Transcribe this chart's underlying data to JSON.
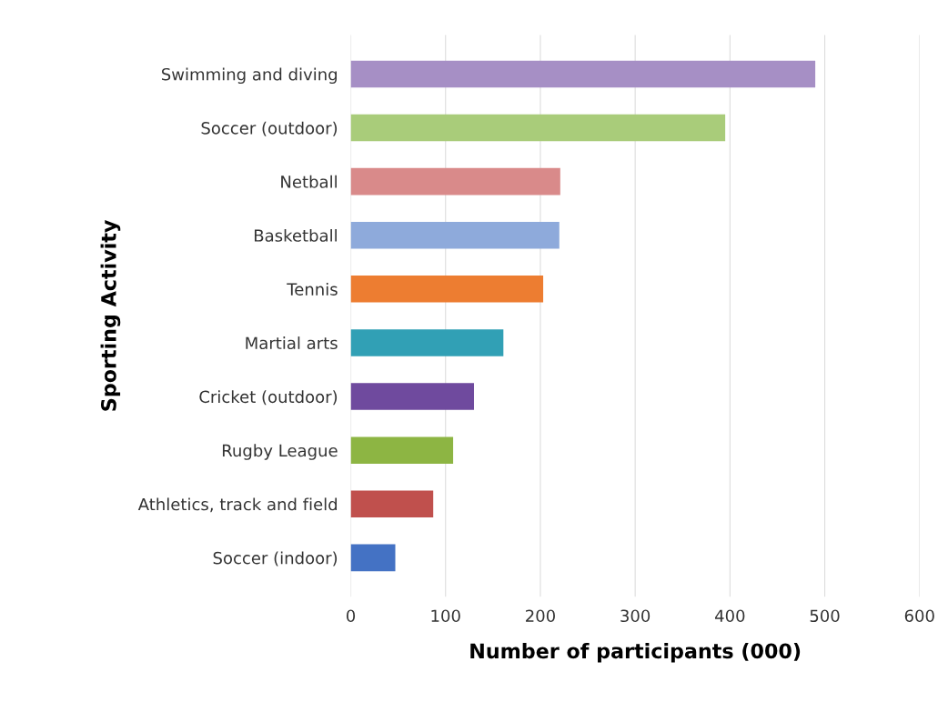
{
  "chart_data": {
    "type": "bar",
    "orientation": "horizontal",
    "xlabel": "Number of participants (000)",
    "ylabel": "Sporting Activity",
    "categories": [
      "Swimming and diving",
      "Soccer (outdoor)",
      "Netball",
      "Basketball",
      "Tennis",
      "Martial arts",
      "Cricket (outdoor)",
      "Rugby League",
      "Athletics, track and field",
      "Soccer (indoor)"
    ],
    "values": [
      490,
      395,
      221,
      220,
      203,
      161,
      130,
      108,
      87,
      47
    ],
    "colors": [
      "#a68fc5",
      "#a9cc7a",
      "#d98a8a",
      "#8eaadb",
      "#ed7d31",
      "#31a0b5",
      "#6f4a9e",
      "#8db543",
      "#c0504d",
      "#4472c4"
    ],
    "xlim": [
      0,
      600
    ],
    "xticks": [
      0,
      100,
      200,
      300,
      400,
      500,
      600
    ],
    "grid": "x",
    "legend": false
  }
}
